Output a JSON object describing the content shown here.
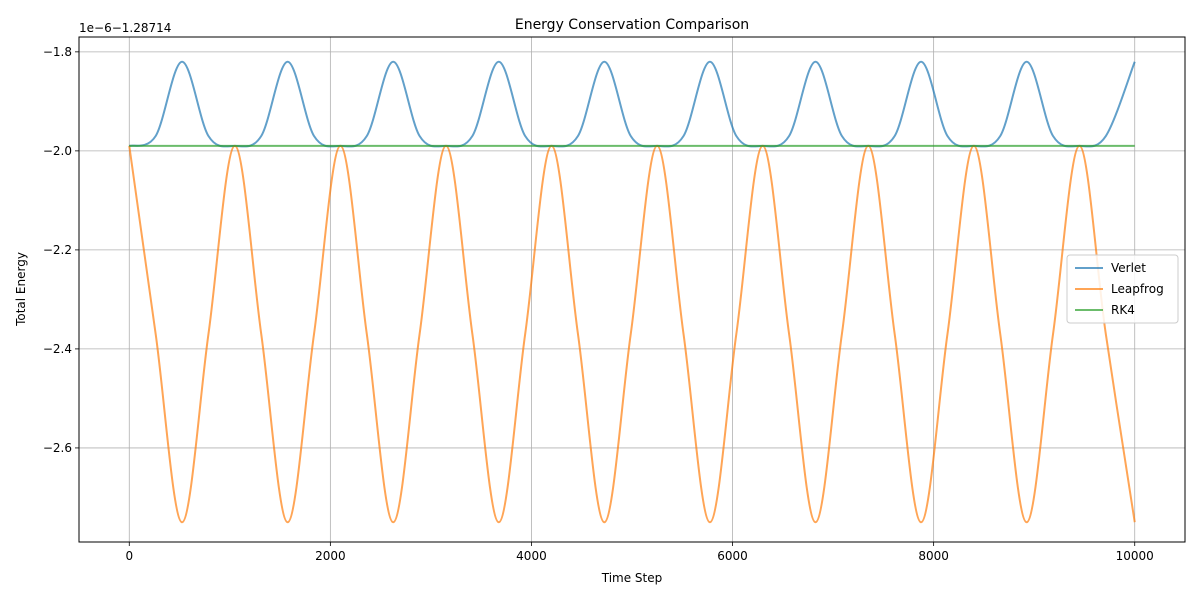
{
  "chart_data": {
    "type": "line",
    "title": "Energy Conservation Comparison",
    "xlabel": "Time Step",
    "ylabel": "Total Energy",
    "offset_text": "1e−6−1.28714",
    "xlim": [
      -500,
      10500
    ],
    "ylim": [
      -2.79,
      -1.77
    ],
    "xticks": [
      0,
      2000,
      4000,
      6000,
      8000,
      10000
    ],
    "xtick_labels": [
      "0",
      "2000",
      "4000",
      "6000",
      "8000",
      "10000"
    ],
    "yticks": [
      -1.8,
      -2.0,
      -2.2,
      -2.4,
      -2.6
    ],
    "ytick_labels": [
      "−1.8",
      "−2.0",
      "−2.2",
      "−2.4",
      "−2.6"
    ],
    "grid": true,
    "legend_position": "center-right",
    "series": [
      {
        "name": "Verlet",
        "color": "#1f77b4",
        "x": [
          0,
          262.5,
          525,
          787.5,
          1050,
          1312.5,
          1575,
          1837.5,
          2100,
          2362.5,
          2625,
          2887.5,
          3150,
          3412.5,
          3675,
          3937.5,
          4200,
          4462.5,
          4725,
          4987.5,
          5250,
          5512.5,
          5775,
          6037.5,
          6300,
          6562.5,
          6825,
          7087.5,
          7350,
          7612.5,
          7875,
          8137.5,
          8400,
          8662.5,
          8925,
          9187.5,
          9450,
          9712.5,
          10000
        ],
        "values": [
          -1.99,
          -1.97,
          -1.82,
          -1.97,
          -1.99,
          -1.97,
          -1.82,
          -1.97,
          -1.99,
          -1.97,
          -1.82,
          -1.97,
          -1.99,
          -1.97,
          -1.82,
          -1.97,
          -1.99,
          -1.97,
          -1.82,
          -1.97,
          -1.99,
          -1.97,
          -1.82,
          -1.97,
          -1.99,
          -1.97,
          -1.82,
          -1.97,
          -1.99,
          -1.97,
          -1.82,
          -1.97,
          -1.99,
          -1.97,
          -1.82,
          -1.97,
          -1.99,
          -1.97,
          -1.82
        ]
      },
      {
        "name": "Leapfrog",
        "color": "#ff7f0e",
        "x": [
          0,
          262.5,
          525,
          787.5,
          1050,
          1312.5,
          1575,
          1837.5,
          2100,
          2362.5,
          2625,
          2887.5,
          3150,
          3412.5,
          3675,
          3937.5,
          4200,
          4462.5,
          4725,
          4987.5,
          5250,
          5512.5,
          5775,
          6037.5,
          6300,
          6562.5,
          6825,
          7087.5,
          7350,
          7612.5,
          7875,
          8137.5,
          8400,
          8662.5,
          8925,
          9187.5,
          9450,
          9712.5,
          10000
        ],
        "values": [
          -1.99,
          -2.37,
          -2.75,
          -2.37,
          -1.99,
          -2.37,
          -2.75,
          -2.37,
          -1.99,
          -2.37,
          -2.75,
          -2.37,
          -1.99,
          -2.37,
          -2.75,
          -2.37,
          -1.99,
          -2.37,
          -2.75,
          -2.37,
          -1.99,
          -2.37,
          -2.75,
          -2.37,
          -1.99,
          -2.37,
          -2.75,
          -2.37,
          -1.99,
          -2.37,
          -2.75,
          -2.37,
          -1.99,
          -2.37,
          -2.75,
          -2.37,
          -1.99,
          -2.37,
          -2.75
        ]
      },
      {
        "name": "RK4",
        "color": "#2ca02c",
        "x": [
          0,
          10000
        ],
        "values": [
          -1.99,
          -1.99
        ]
      }
    ]
  }
}
